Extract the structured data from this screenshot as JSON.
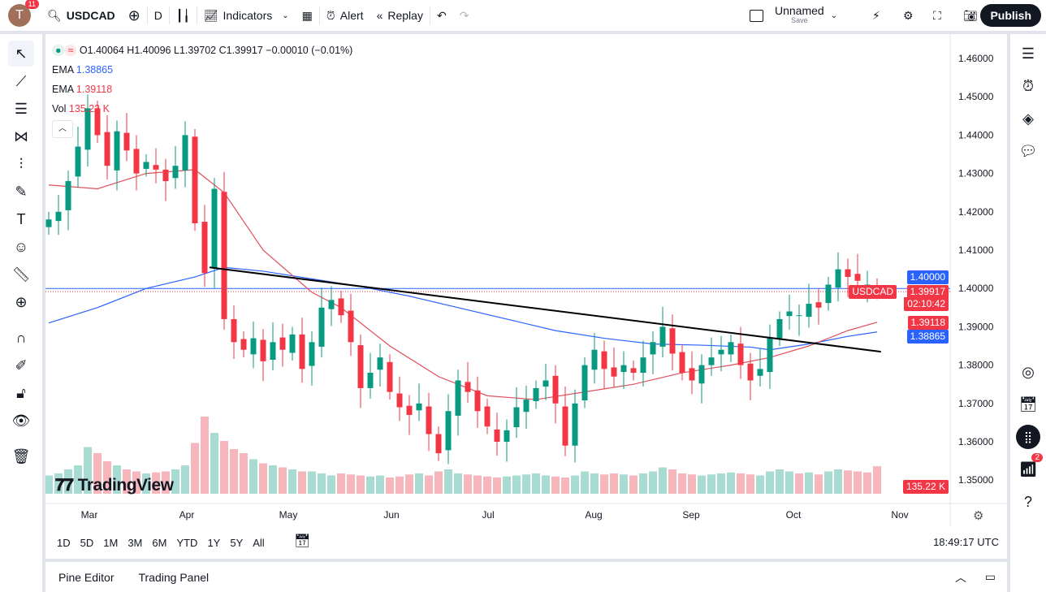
{
  "topbar": {
    "avatar": "T",
    "notifications": "11",
    "symbol": "USDCAD",
    "interval": "D",
    "indicators": "Indicators",
    "alert": "Alert",
    "replay": "Replay",
    "layout_name": "Unnamed",
    "layout_sub": "Save",
    "publish": "Publish"
  },
  "legend": {
    "ohlc": "O1.40064 H1.40096 L1.39702 C1.39917 −0.00010 (−0.01%)",
    "ema1_label": "EMA",
    "ema1_value": "1.38865",
    "ema2_label": "EMA",
    "ema2_value": "1.39118",
    "vol_label": "Vol",
    "vol_value": "135.22 K"
  },
  "price_axis": {
    "ticks": [
      "1.46000",
      "1.45000",
      "1.44000",
      "1.43000",
      "1.42000",
      "1.41000",
      "1.40000",
      "1.39000",
      "1.38000",
      "1.37000",
      "1.36000",
      "1.35000"
    ],
    "label_level": "1.40000",
    "label_symbol": "USDCAD",
    "label_price": "1.39917",
    "label_countdown": "02:10:42",
    "label_ema_red": "1.39118",
    "label_ema_blue": "1.38865",
    "label_vol": "135.22 K"
  },
  "time_axis": {
    "months": [
      "Mar",
      "Apr",
      "May",
      "Jun",
      "Jul",
      "Aug",
      "Sep",
      "Oct",
      "Nov"
    ]
  },
  "ranges": [
    "1D",
    "5D",
    "1M",
    "3M",
    "6M",
    "YTD",
    "1Y",
    "5Y",
    "All"
  ],
  "clock": "18:49:17 UTC",
  "bottom": {
    "pine": "Pine Editor",
    "trading": "Trading Panel"
  },
  "right_badge": "2",
  "watermark": "TradingView",
  "colors": {
    "up": "#089981",
    "down": "#f23645",
    "ema_fast": "#e0505a",
    "ema_slow": "#2962ff",
    "blue_label": "#2962ff",
    "red_label": "#f23645"
  },
  "chart_data": {
    "type": "candlestick",
    "closes": [
      1.418,
      1.42,
      1.428,
      1.437,
      1.447,
      1.44,
      1.432,
      1.441,
      1.436,
      1.43,
      1.433,
      1.431,
      1.428,
      1.432,
      1.44,
      1.417,
      1.404,
      1.426,
      1.392,
      1.386,
      1.384,
      1.387,
      1.381,
      1.386,
      1.384,
      1.388,
      1.379,
      1.386,
      1.395,
      1.397,
      1.393,
      1.386,
      1.374,
      1.378,
      1.382,
      1.373,
      1.369,
      1.367,
      1.37,
      1.362,
      1.357,
      1.368,
      1.376,
      1.373,
      1.368,
      1.364,
      1.36,
      1.363,
      1.369,
      1.371,
      1.374,
      1.376,
      1.37,
      1.359,
      1.37,
      1.38,
      1.384,
      1.379,
      1.377,
      1.38,
      1.378,
      1.382,
      1.386,
      1.39,
      1.383,
      1.378,
      1.376,
      1.38,
      1.382,
      1.384,
      1.386,
      1.38,
      1.376,
      1.379,
      1.387,
      1.392,
      1.394,
      1.393,
      1.396,
      1.395,
      1.401,
      1.405,
      1.403,
      1.402,
      1.401,
      1.39917
    ],
    "volumes": [
      90,
      100,
      120,
      140,
      230,
      200,
      160,
      140,
      120,
      110,
      100,
      105,
      110,
      120,
      140,
      250,
      380,
      300,
      260,
      220,
      200,
      170,
      150,
      140,
      130,
      120,
      110,
      110,
      100,
      90,
      100,
      95,
      90,
      85,
      90,
      80,
      85,
      95,
      100,
      90,
      110,
      120,
      100,
      95,
      90,
      85,
      80,
      85,
      90,
      95,
      100,
      90,
      85,
      80,
      90,
      110,
      100,
      95,
      100,
      95,
      90,
      100,
      110,
      130,
      120,
      100,
      95,
      90,
      95,
      100,
      105,
      100,
      95,
      90,
      110,
      120,
      110,
      100,
      105,
      95,
      110,
      120,
      115,
      110,
      105,
      135.22
    ],
    "ema_red": [
      [
        0,
        1.427
      ],
      [
        5,
        1.426
      ],
      [
        10,
        1.43
      ],
      [
        15,
        1.431
      ],
      [
        18,
        1.425
      ],
      [
        22,
        1.41
      ],
      [
        27,
        1.399
      ],
      [
        30,
        1.395
      ],
      [
        35,
        1.385
      ],
      [
        40,
        1.377
      ],
      [
        45,
        1.372
      ],
      [
        50,
        1.371
      ],
      [
        55,
        1.373
      ],
      [
        60,
        1.375
      ],
      [
        65,
        1.378
      ],
      [
        70,
        1.38
      ],
      [
        74,
        1.382
      ],
      [
        78,
        1.385
      ],
      [
        82,
        1.389
      ],
      [
        85,
        1.39118
      ]
    ],
    "ema_blue": [
      [
        0,
        1.391
      ],
      [
        5,
        1.395
      ],
      [
        10,
        1.4
      ],
      [
        15,
        1.403
      ],
      [
        18,
        1.4055
      ],
      [
        22,
        1.4045
      ],
      [
        27,
        1.4025
      ],
      [
        32,
        1.4005
      ],
      [
        37,
        1.398
      ],
      [
        42,
        1.395
      ],
      [
        47,
        1.392
      ],
      [
        52,
        1.389
      ],
      [
        57,
        1.387
      ],
      [
        62,
        1.3855
      ],
      [
        67,
        1.3852
      ],
      [
        72,
        1.3847
      ],
      [
        74,
        1.384
      ],
      [
        78,
        1.3855
      ],
      [
        82,
        1.3875
      ],
      [
        85,
        1.38865
      ]
    ],
    "trendline": [
      [
        16.5,
        1.4055
      ],
      [
        85.4,
        1.3835
      ]
    ],
    "horizontal_line": 1.4,
    "ylim": [
      1.35,
      1.46
    ]
  }
}
